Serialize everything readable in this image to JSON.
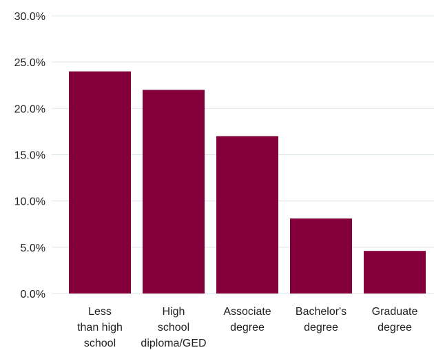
{
  "chart_data": {
    "type": "bar",
    "title": "",
    "xlabel": "",
    "ylabel": "",
    "categories": [
      [
        "Less",
        "than high",
        "school"
      ],
      [
        "High",
        "school",
        "diploma/GED"
      ],
      [
        "Associate",
        "degree"
      ],
      [
        "Bachelor's",
        "degree"
      ],
      [
        "Graduate",
        "degree"
      ]
    ],
    "values": [
      24.0,
      22.0,
      17.0,
      8.1,
      4.6
    ],
    "ylim": [
      0,
      30
    ],
    "yticks": [
      0,
      5,
      10,
      15,
      20,
      25,
      30
    ],
    "ytick_labels": [
      "0.0%",
      "5.0%",
      "10.0%",
      "15.0%",
      "20.0%",
      "25.0%",
      "30.0%"
    ],
    "grid": true,
    "legend": "none",
    "bar_color": "#84003a",
    "grid_color": "#dde7ee"
  }
}
